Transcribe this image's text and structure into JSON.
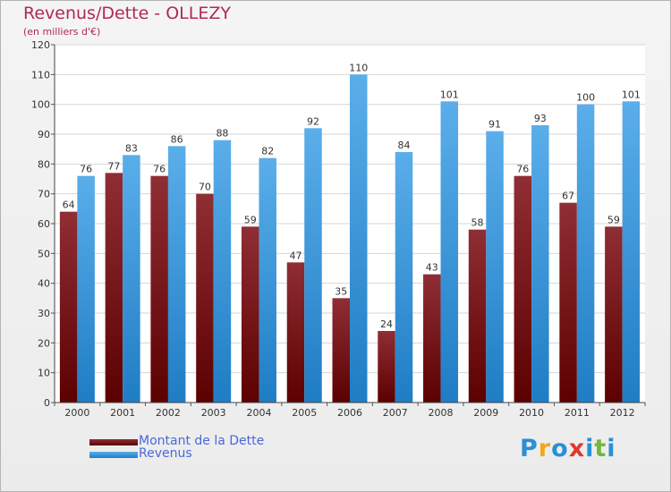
{
  "chart_data": {
    "type": "bar",
    "title": "Revenus/Dette - OLLEZY",
    "subtitle": "(en milliers d'€)",
    "categories": [
      "2000",
      "2001",
      "2002",
      "2003",
      "2004",
      "2005",
      "2006",
      "2007",
      "2008",
      "2009",
      "2010",
      "2011",
      "2012"
    ],
    "series": [
      {
        "name": "Montant de la Dette",
        "color": "#8b1a1a",
        "values": [
          64,
          77,
          76,
          70,
          59,
          47,
          35,
          24,
          43,
          58,
          76,
          67,
          59
        ]
      },
      {
        "name": "Revenus",
        "color": "#3d9ee6",
        "values": [
          76,
          83,
          86,
          88,
          82,
          92,
          110,
          84,
          101,
          91,
          93,
          100,
          101
        ]
      }
    ],
    "ylim": [
      0,
      120
    ],
    "yticks": [
      0,
      10,
      20,
      30,
      40,
      50,
      60,
      70,
      80,
      90,
      100,
      110,
      120
    ],
    "grid": true,
    "xlabel": "",
    "ylabel": "",
    "legend_position": "bottom-left"
  },
  "logo": {
    "text": "Proxiti",
    "colors": [
      "#2a8fd6",
      "#f2a623",
      "#2a8fd6",
      "#e0392b",
      "#2a8fd6",
      "#73b63a",
      "#2a8fd6"
    ]
  }
}
